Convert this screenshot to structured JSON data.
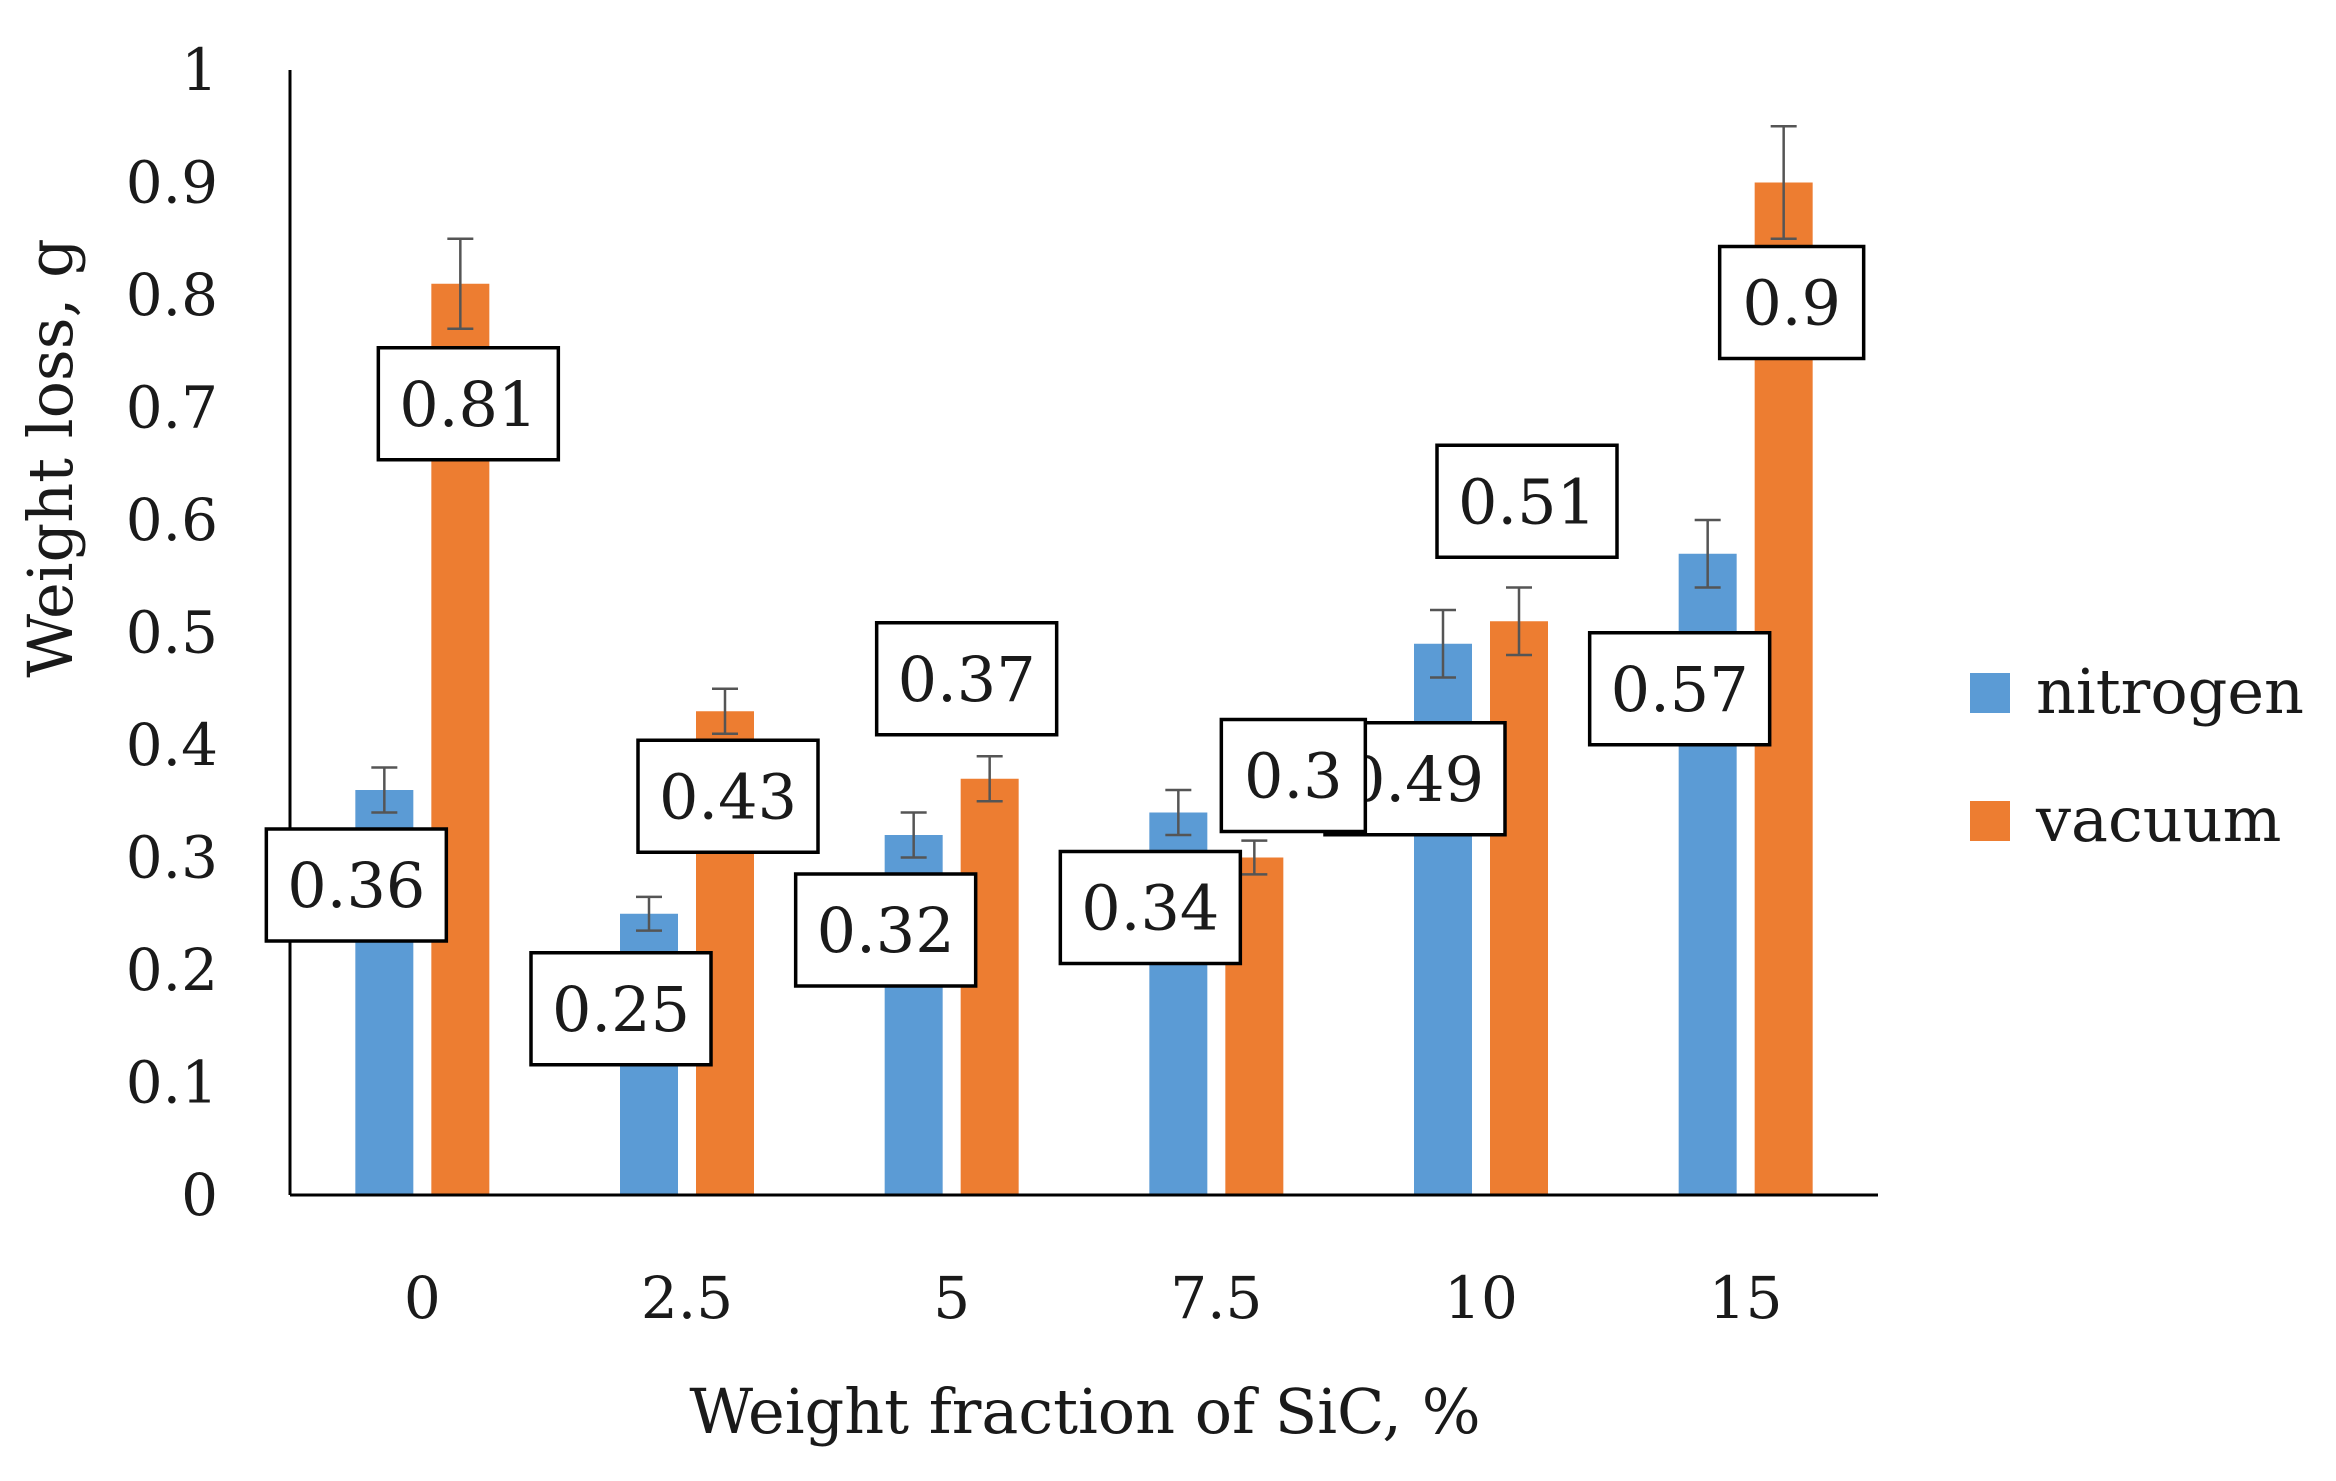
{
  "chart_data": {
    "type": "bar",
    "title": "",
    "xlabel": "Weight fraction of SiC, %",
    "ylabel": "Weight loss, g",
    "categories": [
      "0",
      "2.5",
      "5",
      "7.5",
      "10",
      "15"
    ],
    "ylim": [
      0,
      1
    ],
    "yticks": [
      "0",
      "0.1",
      "0.2",
      "0.3",
      "0.4",
      "0.5",
      "0.6",
      "0.7",
      "0.8",
      "0.9",
      "1"
    ],
    "grid": false,
    "legend_position": "right",
    "series": [
      {
        "name": "nitrogen",
        "color": "#5B9BD5",
        "values": [
          0.36,
          0.25,
          0.32,
          0.34,
          0.49,
          0.57
        ],
        "error": [
          0.02,
          0.015,
          0.02,
          0.02,
          0.03,
          0.03
        ],
        "labels": [
          "0.36",
          "0.25",
          "0.32",
          "0.34",
          "0.49",
          "0.57"
        ]
      },
      {
        "name": "vacuum",
        "color": "#ED7D31",
        "values": [
          0.81,
          0.43,
          0.37,
          0.3,
          0.51,
          0.9
        ],
        "error": [
          0.04,
          0.02,
          0.02,
          0.015,
          0.03,
          0.05
        ],
        "labels": [
          "0.81",
          "0.43",
          "0.37",
          "0.3",
          "0.51",
          "0.9"
        ]
      }
    ]
  }
}
